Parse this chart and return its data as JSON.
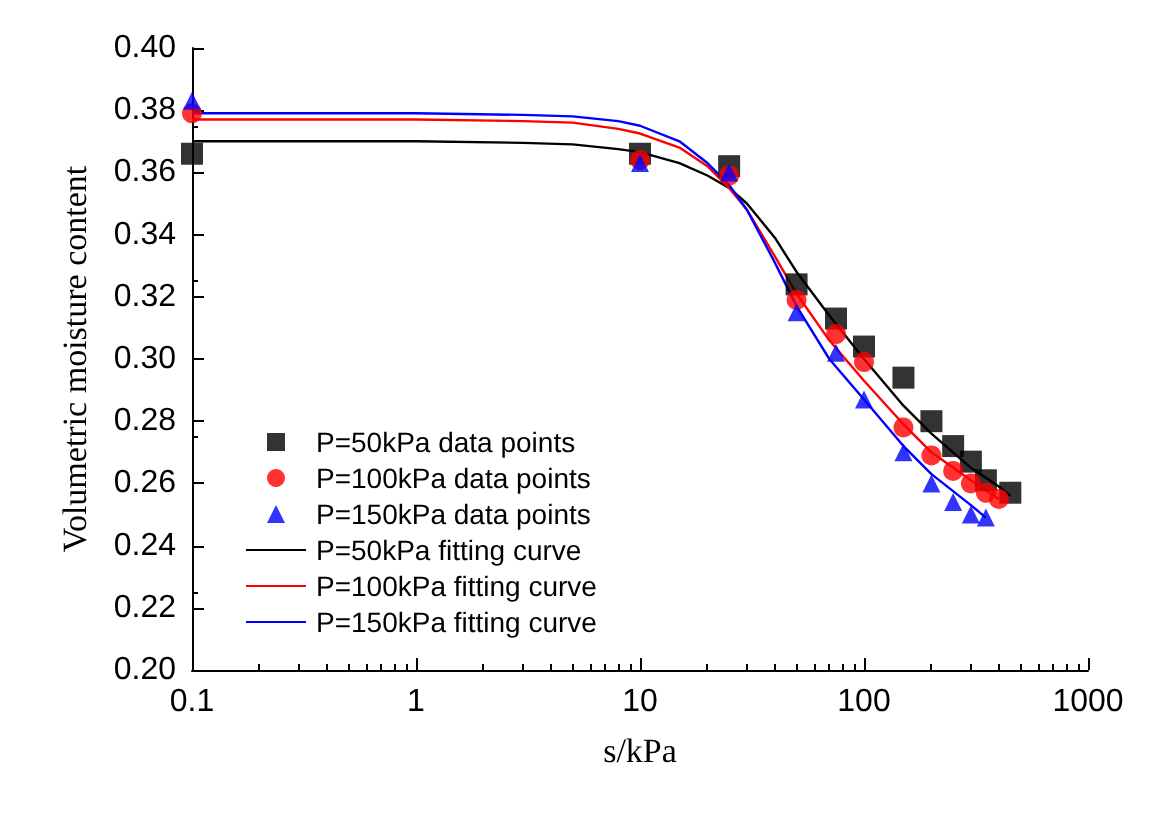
{
  "chart_data": {
    "type": "scatter",
    "xlabel": "s/kPa",
    "ylabel": "Volumetric moisture content",
    "log": "x",
    "grid": false,
    "legend": "bottom left",
    "xlim": [
      0.1,
      1000
    ],
    "xticks": [
      0.1,
      1,
      10,
      100,
      1000
    ],
    "ylim": [
      0.2,
      0.4
    ],
    "yticks": [
      {
        "value": 0.2,
        "label": "0.20"
      },
      {
        "value": 0.22,
        "label": "0.22"
      },
      {
        "value": 0.24,
        "label": "0.24"
      },
      {
        "value": 0.26,
        "label": "0.26"
      },
      {
        "value": 0.28,
        "label": "0.28"
      },
      {
        "value": 0.3,
        "label": "0.30"
      },
      {
        "value": 0.32,
        "label": "0.32"
      },
      {
        "value": 0.34,
        "label": "0.34"
      },
      {
        "value": 0.36,
        "label": "0.36"
      },
      {
        "value": 0.38,
        "label": "0.38"
      },
      {
        "value": 0.4,
        "label": "0.40"
      }
    ],
    "series": [
      {
        "name": "P=50kPa data points",
        "color": "#000000",
        "marker": "square",
        "x": [
          0.1,
          10,
          25,
          50,
          75,
          100,
          150,
          200,
          250,
          300,
          350,
          450
        ],
        "values": [
          0.366,
          0.366,
          0.362,
          0.324,
          0.313,
          0.304,
          0.294,
          0.28,
          0.272,
          0.267,
          0.261,
          0.257
        ]
      },
      {
        "name": "P=100kPa data points",
        "color": "#ff0000",
        "marker": "circle",
        "x": [
          0.1,
          10,
          25,
          50,
          75,
          100,
          150,
          200,
          250,
          300,
          350,
          400
        ],
        "values": [
          0.379,
          0.364,
          0.359,
          0.319,
          0.308,
          0.299,
          0.278,
          0.269,
          0.264,
          0.26,
          0.257,
          0.255
        ]
      },
      {
        "name": "P=150kPa data points",
        "color": "#0000ff",
        "marker": "triangle",
        "x": [
          0.1,
          10,
          25,
          50,
          75,
          100,
          150,
          200,
          250,
          300,
          350
        ],
        "values": [
          0.383,
          0.363,
          0.36,
          0.315,
          0.302,
          0.287,
          0.27,
          0.26,
          0.254,
          0.25,
          0.249
        ]
      },
      {
        "type": "line",
        "name": "P=50kPa fitting curve",
        "color": "#000000",
        "marker": "none",
        "x": [
          0.1,
          1,
          3,
          5,
          8,
          10,
          15,
          20,
          25,
          30,
          40,
          50,
          70,
          100,
          150,
          200,
          300,
          400,
          450
        ],
        "values": [
          0.37,
          0.37,
          0.3695,
          0.369,
          0.3675,
          0.3665,
          0.363,
          0.359,
          0.355,
          0.35,
          0.339,
          0.328,
          0.314,
          0.3,
          0.285,
          0.276,
          0.265,
          0.259,
          0.256
        ]
      },
      {
        "type": "line",
        "name": "P=100kPa fitting curve",
        "color": "#ff0000",
        "marker": "none",
        "x": [
          0.1,
          1,
          3,
          5,
          8,
          10,
          15,
          20,
          25,
          30,
          40,
          50,
          70,
          100,
          150,
          200,
          300,
          400
        ],
        "values": [
          0.377,
          0.377,
          0.3765,
          0.376,
          0.374,
          0.3725,
          0.368,
          0.362,
          0.355,
          0.348,
          0.333,
          0.321,
          0.306,
          0.293,
          0.279,
          0.27,
          0.261,
          0.255
        ]
      },
      {
        "type": "line",
        "name": "P=150kPa fitting curve",
        "color": "#0000ff",
        "marker": "none",
        "x": [
          0.1,
          1,
          3,
          5,
          8,
          10,
          15,
          20,
          25,
          30,
          40,
          50,
          70,
          100,
          150,
          200,
          300,
          350
        ],
        "values": [
          0.379,
          0.379,
          0.3785,
          0.378,
          0.3765,
          0.375,
          0.37,
          0.363,
          0.356,
          0.348,
          0.331,
          0.317,
          0.3,
          0.287,
          0.272,
          0.263,
          0.253,
          0.249
        ]
      }
    ]
  }
}
